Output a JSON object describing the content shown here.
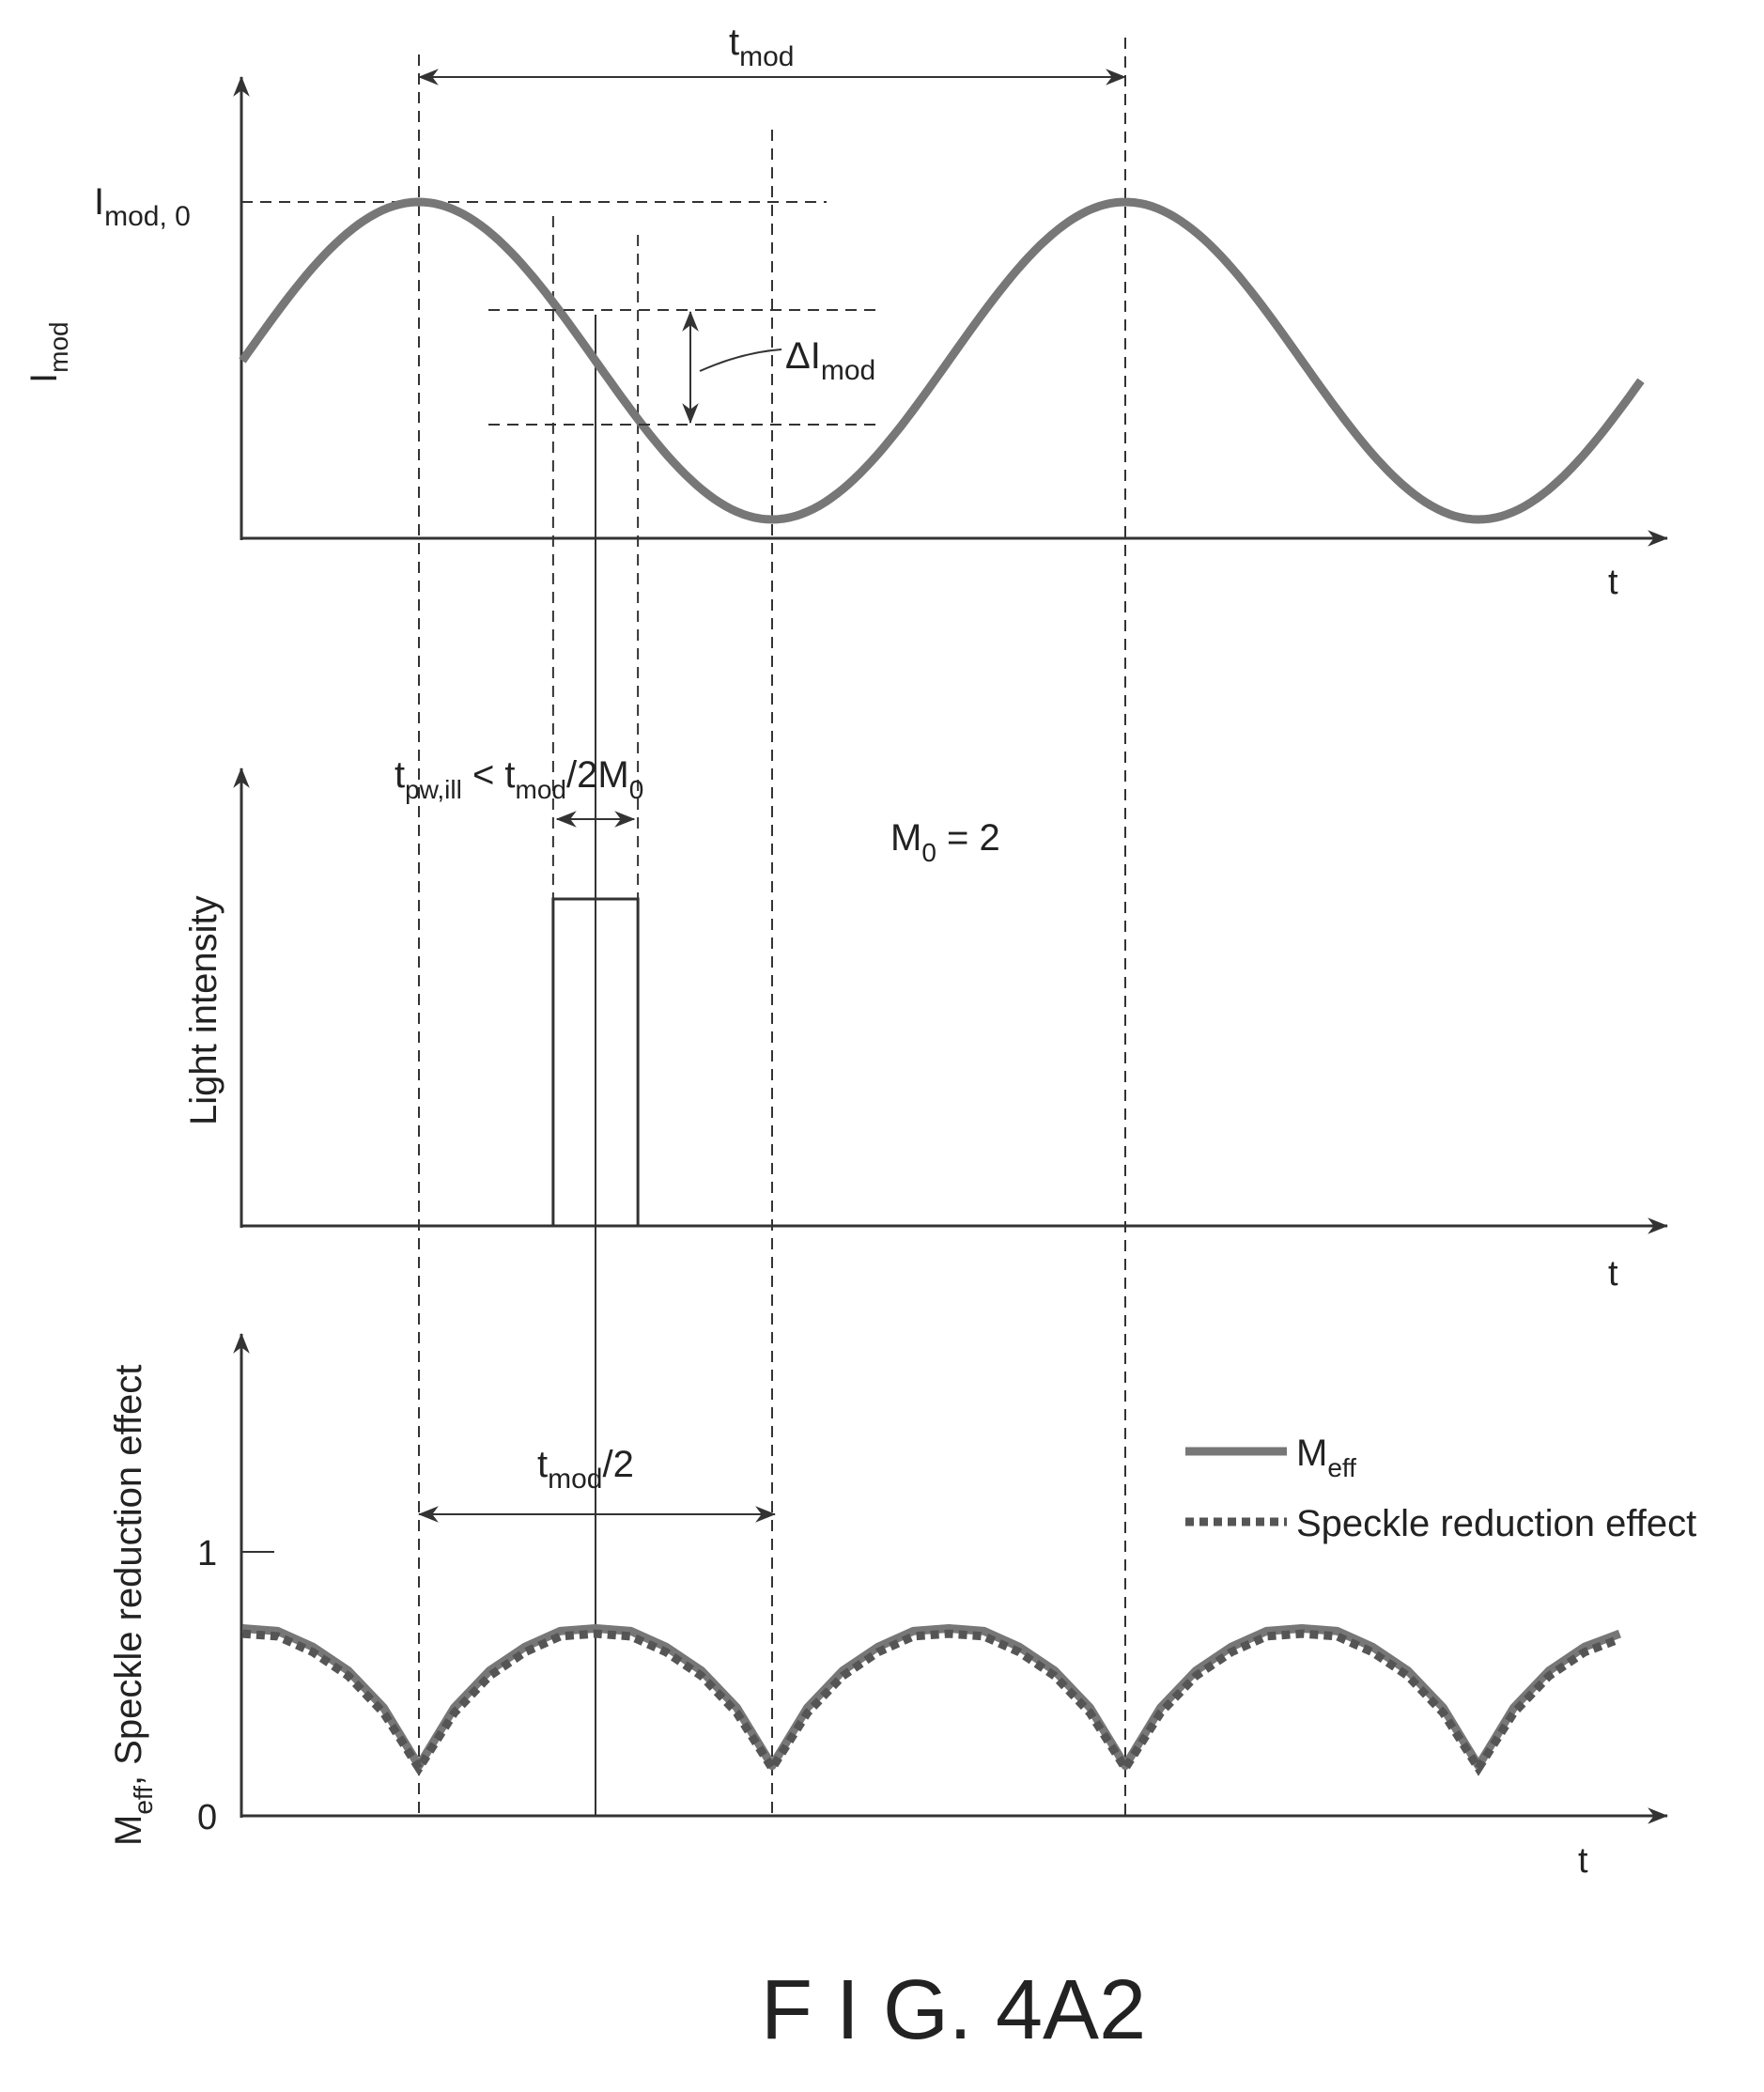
{
  "figure_label": "F I G. 4A2",
  "annotations": {
    "t_mod": "t",
    "t_mod_sub": "mod",
    "t_mod_half": "t",
    "t_mod_half_sub": "mod",
    "t_mod_half_suffix": "/2",
    "delta_i": "ΔI",
    "delta_i_sub": "mod",
    "imod0_main": "I",
    "imod0_sub": "mod, 0",
    "pulse_cond_t": "t",
    "pulse_cond_sub1": "pw,ill",
    "pulse_cond_lt": " < t",
    "pulse_cond_sub2": "mod",
    "pulse_cond_tail": "/2M",
    "pulse_cond_sub3": "0",
    "m0_main": "M",
    "m0_sub": "0",
    "m0_value": " = 2"
  },
  "chart_data": [
    {
      "type": "line",
      "ylabel": "I",
      "ylabel_sub": "mod",
      "xlabel": "t",
      "x_range": [
        -0.25,
        1.75
      ],
      "y_range": [
        -1.05,
        1
      ],
      "period": 1,
      "max_at": [
        0,
        1
      ],
      "min_at": [
        0.5,
        1.5
      ],
      "series": [
        {
          "name": "I_mod",
          "shape": "cosine",
          "amplitude": 1,
          "x_start": -0.25,
          "x_end": 1.73
        }
      ]
    },
    {
      "type": "line",
      "ylabel": "Light intensity",
      "xlabel": "t",
      "x_range": [
        -0.25,
        1.75
      ],
      "pulse": {
        "start": 0.19,
        "end": 0.31,
        "level": 1
      }
    },
    {
      "type": "line",
      "ylabel": "M",
      "ylabel_sub": "eff",
      "ylabel_suffix": ", Speckle reduction effect",
      "xlabel": "t",
      "x_range": [
        -0.25,
        1.75
      ],
      "y_range": [
        0,
        1.6
      ],
      "y_ticks": [
        {
          "value": 0,
          "label": "0"
        },
        {
          "value": 1,
          "label": "1"
        }
      ],
      "legend_position": "top-right",
      "series": [
        {
          "name": "M",
          "name_sub": "eff",
          "style": "solid",
          "x": [
            -0.25,
            -0.2,
            -0.15,
            -0.1,
            -0.05,
            0,
            0.05,
            0.1,
            0.15,
            0.2,
            0.25,
            0.3,
            0.35,
            0.4,
            0.45,
            0.5,
            0.55,
            0.6,
            0.65,
            0.7,
            0.75,
            0.8,
            0.85,
            0.9,
            0.95,
            1,
            1.05,
            1.1,
            1.15,
            1.2,
            1.25,
            1.3,
            1.35,
            1.4,
            1.45,
            1.5,
            1.55,
            1.6,
            1.65,
            1.7
          ],
          "y": [
            0.71,
            0.7,
            0.64,
            0.55,
            0.41,
            0.19,
            0.41,
            0.55,
            0.64,
            0.7,
            0.71,
            0.7,
            0.64,
            0.55,
            0.41,
            0.19,
            0.41,
            0.55,
            0.64,
            0.7,
            0.71,
            0.7,
            0.64,
            0.55,
            0.41,
            0.19,
            0.41,
            0.55,
            0.64,
            0.7,
            0.71,
            0.7,
            0.64,
            0.55,
            0.41,
            0.19,
            0.41,
            0.55,
            0.64,
            0.69
          ]
        },
        {
          "name": "Speckle reduction effect",
          "style": "dashed",
          "x": [
            -0.25,
            -0.2,
            -0.15,
            -0.1,
            -0.05,
            0,
            0.05,
            0.1,
            0.15,
            0.2,
            0.25,
            0.3,
            0.35,
            0.4,
            0.45,
            0.5,
            0.55,
            0.6,
            0.65,
            0.7,
            0.75,
            0.8,
            0.85,
            0.9,
            0.95,
            1,
            1.05,
            1.1,
            1.15,
            1.2,
            1.25,
            1.3,
            1.35,
            1.4,
            1.45,
            1.5,
            1.55,
            1.6,
            1.65,
            1.7
          ],
          "y": [
            0.69,
            0.68,
            0.62,
            0.53,
            0.39,
            0.18,
            0.39,
            0.53,
            0.62,
            0.68,
            0.69,
            0.68,
            0.62,
            0.53,
            0.39,
            0.18,
            0.39,
            0.53,
            0.62,
            0.68,
            0.69,
            0.68,
            0.62,
            0.53,
            0.39,
            0.18,
            0.39,
            0.53,
            0.62,
            0.68,
            0.69,
            0.68,
            0.62,
            0.53,
            0.39,
            0.18,
            0.39,
            0.53,
            0.62,
            0.67
          ]
        }
      ]
    }
  ]
}
